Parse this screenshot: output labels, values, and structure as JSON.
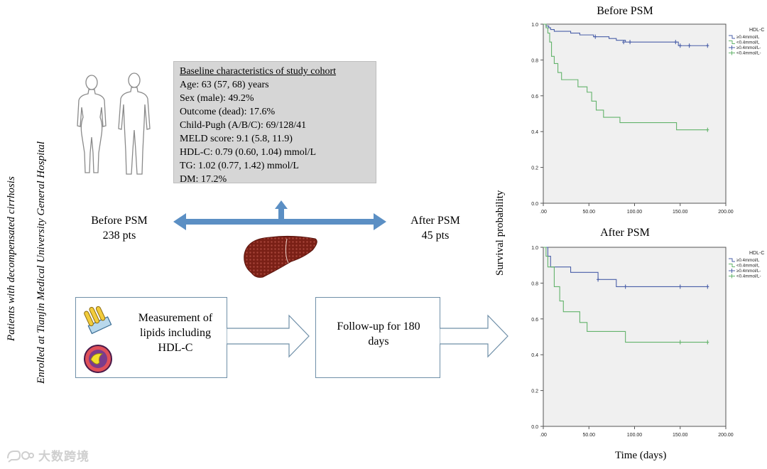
{
  "side_labels": {
    "patients": "Patients with decompensated cirrhosis",
    "enrolled": "Enrolled at Tianjin Medical University General Hospital"
  },
  "baseline": {
    "title": "Baseline characteristics  of study cohort",
    "lines": [
      "Age: 63 (57, 68) years",
      "Sex (male): 49.2%",
      "Outcome (dead): 17.6%",
      "Child-Pugh (A/B/C): 69/128/41",
      "MELD score: 9.1 (5.8, 11.9)",
      "HDL-C: 0.79 (0.60, 1.04) mmol/L",
      "TG: 1.02 (0.77, 1.42) mmol/L",
      "DM: 17.2%"
    ]
  },
  "cohorts": {
    "before": {
      "label": "Before PSM",
      "count": "238 pts"
    },
    "after": {
      "label": "After PSM",
      "count": "45 pts"
    }
  },
  "flow": {
    "measure": [
      "Measurement of",
      "lipids including",
      "HDL-C"
    ],
    "followup": [
      "Follow-up for 180",
      "days"
    ]
  },
  "colors": {
    "arrow": "#5b8fc4",
    "high": "#4a5fa8",
    "low": "#63b36b",
    "plot_bg": "#f0f0f0"
  },
  "axis": {
    "y_title": "Survival probability",
    "x_title": "Time (days)"
  },
  "watermark": "大数跨境",
  "chart_data": [
    {
      "type": "line",
      "title": "Before PSM",
      "xlabel": "Time (days)",
      "ylabel": "Survival probability",
      "xlim": [
        0,
        200
      ],
      "ylim": [
        0,
        1
      ],
      "x_ticks": [
        0,
        50,
        100,
        150,
        200
      ],
      "x_tick_labels": [
        ".00",
        "50.00",
        "100.00",
        "150.00",
        "200.00"
      ],
      "y_ticks": [
        0,
        0.2,
        0.4,
        0.6,
        0.8,
        1.0
      ],
      "y_tick_labels": [
        "0.0",
        "0.2",
        "0.4",
        "0.6",
        "0.8",
        "1.0"
      ],
      "legend_title": "HDL-C",
      "legend": [
        "≥0.4mmol/L",
        "<0.4mmol/L",
        "≥0.4mmol/L-censored",
        "<0.4mmol/L-censored"
      ],
      "legend_display": [
        "≥0.4mmol/L",
        "<0.4mmol/L",
        "≥0.4mmol/L-",
        "<0.4mmol/L-"
      ],
      "series": [
        {
          "name": "≥0.4mmol/L",
          "color": "#4a5fa8",
          "steps": [
            [
              0,
              1.0
            ],
            [
              3,
              0.99
            ],
            [
              6,
              0.98
            ],
            [
              8,
              0.97
            ],
            [
              12,
              0.96
            ],
            [
              30,
              0.95
            ],
            [
              40,
              0.94
            ],
            [
              55,
              0.93
            ],
            [
              72,
              0.92
            ],
            [
              80,
              0.91
            ],
            [
              90,
              0.9
            ],
            [
              148,
              0.88
            ],
            [
              180,
              0.88
            ]
          ],
          "censored": [
            [
              57,
              0.93
            ],
            [
              88,
              0.9
            ],
            [
              95,
              0.9
            ],
            [
              145,
              0.9
            ],
            [
              150,
              0.88
            ],
            [
              160,
              0.88
            ],
            [
              180,
              0.88
            ]
          ]
        },
        {
          "name": "<0.4mmol/L",
          "color": "#63b36b",
          "steps": [
            [
              0,
              1.0
            ],
            [
              3,
              0.98
            ],
            [
              5,
              0.95
            ],
            [
              7,
              0.9
            ],
            [
              9,
              0.82
            ],
            [
              12,
              0.78
            ],
            [
              16,
              0.73
            ],
            [
              20,
              0.69
            ],
            [
              38,
              0.65
            ],
            [
              48,
              0.62
            ],
            [
              53,
              0.57
            ],
            [
              58,
              0.52
            ],
            [
              66,
              0.48
            ],
            [
              84,
              0.45
            ],
            [
              146,
              0.41
            ],
            [
              180,
              0.41
            ]
          ],
          "censored": [
            [
              180,
              0.41
            ]
          ]
        }
      ]
    },
    {
      "type": "line",
      "title": "After PSM",
      "xlabel": "Time (days)",
      "ylabel": "Survival probability",
      "xlim": [
        0,
        200
      ],
      "ylim": [
        0,
        1
      ],
      "x_ticks": [
        0,
        50,
        100,
        150,
        200
      ],
      "x_tick_labels": [
        ".00",
        "50.00",
        "100.00",
        "150.00",
        "200.00"
      ],
      "y_ticks": [
        0,
        0.2,
        0.4,
        0.6,
        0.8,
        1.0
      ],
      "y_tick_labels": [
        "0.0",
        "0.2",
        "0.4",
        "0.6",
        "0.8",
        "1.0"
      ],
      "legend_title": "HDL-C",
      "legend": [
        "≥0.4mmol/L",
        "<0.4mmol/L",
        "≥0.4mmol/L-censored",
        "<0.4mmol/L-censored"
      ],
      "legend_display": [
        "≥0.4mmol/L",
        "<0.4mmol/L",
        "≥0.4mmol/L-",
        "<0.4mmol/L-"
      ],
      "series": [
        {
          "name": "≥0.4mmol/L",
          "color": "#4a5fa8",
          "steps": [
            [
              0,
              1.0
            ],
            [
              5,
              0.95
            ],
            [
              8,
              0.89
            ],
            [
              30,
              0.86
            ],
            [
              60,
              0.82
            ],
            [
              80,
              0.78
            ],
            [
              180,
              0.78
            ]
          ],
          "censored": [
            [
              60,
              0.82
            ],
            [
              90,
              0.78
            ],
            [
              150,
              0.78
            ],
            [
              180,
              0.78
            ]
          ]
        },
        {
          "name": "<0.4mmol/L",
          "color": "#63b36b",
          "steps": [
            [
              0,
              1.0
            ],
            [
              3,
              0.95
            ],
            [
              5,
              0.89
            ],
            [
              12,
              0.78
            ],
            [
              18,
              0.7
            ],
            [
              22,
              0.64
            ],
            [
              40,
              0.58
            ],
            [
              48,
              0.53
            ],
            [
              90,
              0.47
            ],
            [
              180,
              0.47
            ]
          ],
          "censored": [
            [
              150,
              0.47
            ],
            [
              180,
              0.47
            ]
          ]
        }
      ]
    }
  ]
}
